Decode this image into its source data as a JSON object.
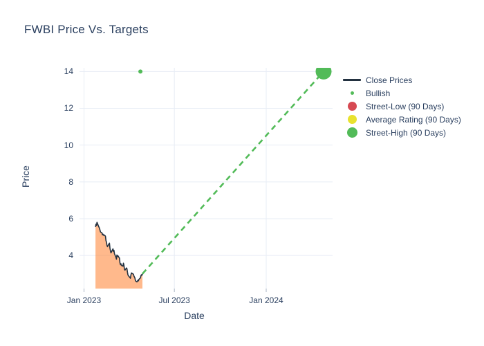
{
  "title": "FWBI Price Vs. Targets",
  "colors": {
    "text": "#2a3f5f",
    "grid": "#e7ecf5",
    "tick": "#a9b4c4",
    "close_line": "#233140",
    "fill_area": "rgba(255,127,46,0.55)",
    "bullish_green": "#52bb58",
    "street_low_red": "#d64952",
    "average_yellow": "#e8e22f",
    "street_high_green": "#52bb58",
    "background": "#ffffff"
  },
  "legend": {
    "items": [
      {
        "label": "Close Prices",
        "marker": "line",
        "color_key": "close_line"
      },
      {
        "label": "Bullish",
        "marker": "dot-small",
        "color_key": "bullish_green"
      },
      {
        "label": "Street-Low (90 Days)",
        "marker": "circle",
        "color_key": "street_low_red"
      },
      {
        "label": "Average Rating (90 Days)",
        "marker": "circle",
        "color_key": "average_yellow"
      },
      {
        "label": "Street-High (90 Days)",
        "marker": "circle-large",
        "color_key": "street_high_green"
      }
    ]
  },
  "chart_data": {
    "type": "line",
    "title": "FWBI Price Vs. Targets",
    "xlabel": "Date",
    "ylabel": "Price",
    "grid": true,
    "legend_position": "right",
    "x_range": [
      "2022-12-23",
      "2024-05-13"
    ],
    "y_range": [
      2.2,
      14.2
    ],
    "x_ticks": [
      {
        "label": "Jan 2023",
        "date": "2023-01-01"
      },
      {
        "label": "Jul 2023",
        "date": "2023-07-01"
      },
      {
        "label": "Jan 2024",
        "date": "2024-01-01"
      }
    ],
    "y_ticks": [
      4,
      6,
      8,
      10,
      12,
      14
    ],
    "close_prices": {
      "name": "Close Prices",
      "style": "solid-line-with-area-fill",
      "dates": [
        "2023-01-24",
        "2023-01-25",
        "2023-01-26",
        "2023-01-27",
        "2023-01-30",
        "2023-02-01",
        "2023-02-02",
        "2023-02-03",
        "2023-02-06",
        "2023-02-07",
        "2023-02-08",
        "2023-02-09",
        "2023-02-10",
        "2023-02-13",
        "2023-02-14",
        "2023-02-15",
        "2023-02-16",
        "2023-02-17",
        "2023-02-21",
        "2023-02-22",
        "2023-02-23",
        "2023-02-24",
        "2023-02-27",
        "2023-02-28",
        "2023-03-01",
        "2023-03-02",
        "2023-03-03",
        "2023-03-06",
        "2023-03-07",
        "2023-03-08",
        "2023-03-09",
        "2023-03-10",
        "2023-03-13",
        "2023-03-14",
        "2023-03-15",
        "2023-03-16",
        "2023-03-17",
        "2023-03-20",
        "2023-03-21",
        "2023-03-22",
        "2023-03-23",
        "2023-03-24",
        "2023-03-27",
        "2023-03-28",
        "2023-03-29",
        "2023-03-30",
        "2023-03-31",
        "2023-04-03",
        "2023-04-04",
        "2023-04-05",
        "2023-04-06",
        "2023-04-10",
        "2023-04-11",
        "2023-04-12",
        "2023-04-13",
        "2023-04-14",
        "2023-04-17",
        "2023-04-18",
        "2023-04-19",
        "2023-04-20",
        "2023-04-21",
        "2023-04-24",
        "2023-04-25",
        "2023-04-26",
        "2023-04-27",
        "2023-04-28"
      ],
      "values": [
        5.55,
        5.7,
        5.62,
        5.8,
        5.6,
        5.48,
        5.38,
        5.28,
        5.22,
        5.12,
        5.16,
        5.1,
        5.12,
        5.05,
        4.8,
        4.72,
        4.55,
        4.48,
        4.67,
        4.4,
        4.25,
        4.14,
        4.3,
        4.36,
        4.22,
        4.28,
        4.1,
        3.9,
        3.8,
        4.02,
        3.95,
        3.98,
        3.85,
        3.6,
        3.5,
        3.55,
        3.46,
        3.42,
        3.58,
        3.48,
        3.25,
        3.2,
        3.32,
        3.28,
        3.1,
        2.95,
        2.9,
        2.8,
        2.76,
        2.95,
        3.05,
        2.98,
        2.88,
        2.83,
        2.78,
        2.62,
        2.56,
        2.6,
        2.66,
        2.62,
        2.7,
        2.78,
        2.9,
        2.95,
        2.92,
        3.0
      ]
    },
    "bullish": {
      "name": "Bullish",
      "style": "dashed-line",
      "trend_from": {
        "date": "2023-04-28",
        "value": 3.0
      },
      "trend_to": {
        "date": "2024-04-25",
        "value": 14.0
      },
      "dot": {
        "date": "2023-04-24",
        "value": 14.0
      }
    },
    "targets": [
      {
        "name": "Street-Low (90 Days)",
        "date": "2024-04-25",
        "value": 14.0,
        "color_key": "street_low_red",
        "radius": 8.5
      },
      {
        "name": "Average Rating (90 Days)",
        "date": "2024-04-25",
        "value": 14.0,
        "color_key": "average_yellow",
        "radius": 10
      },
      {
        "name": "Street-High (90 Days)",
        "date": "2024-04-25",
        "value": 14.0,
        "color_key": "street_high_green",
        "radius": 11.5
      }
    ]
  }
}
